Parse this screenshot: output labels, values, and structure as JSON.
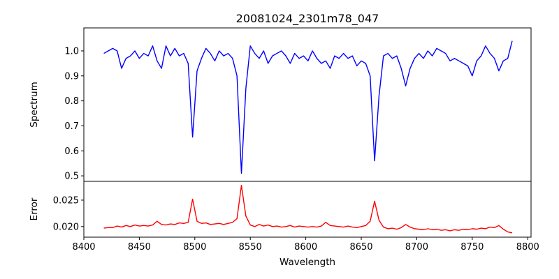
{
  "chart_data": [
    {
      "type": "line",
      "panel": "top",
      "title": "20081024_2301m78_047",
      "xlabel": "Wavelength",
      "ylabel": "Spectrum",
      "xlim": [
        8400,
        8803
      ],
      "ylim": [
        0.478,
        1.092
      ],
      "xticks": [
        "8400",
        "8450",
        "8500",
        "8550",
        "8600",
        "8650",
        "8700",
        "8750",
        "8800"
      ],
      "yticks": [
        "0.5",
        "0.6",
        "0.7",
        "0.8",
        "0.9",
        "1.0"
      ],
      "ytick_values": [
        0.5,
        0.6,
        0.7,
        0.8,
        0.9,
        1.0
      ],
      "color": "#0000ff",
      "x_start": 8418,
      "x_step": 4,
      "values": [
        0.99,
        1.0,
        1.01,
        1.0,
        0.93,
        0.97,
        0.98,
        1.0,
        0.97,
        0.99,
        0.98,
        1.02,
        0.96,
        0.93,
        1.02,
        0.98,
        1.01,
        0.98,
        0.99,
        0.95,
        0.655,
        0.92,
        0.97,
        1.01,
        0.99,
        0.96,
        1.0,
        0.98,
        0.99,
        0.97,
        0.9,
        0.51,
        0.85,
        1.02,
        0.99,
        0.97,
        1.0,
        0.95,
        0.98,
        0.99,
        1.0,
        0.98,
        0.95,
        0.99,
        0.97,
        0.98,
        0.96,
        1.0,
        0.97,
        0.95,
        0.96,
        0.93,
        0.98,
        0.97,
        0.99,
        0.97,
        0.98,
        0.94,
        0.96,
        0.95,
        0.9,
        0.56,
        0.82,
        0.98,
        0.99,
        0.97,
        0.98,
        0.93,
        0.86,
        0.93,
        0.97,
        0.99,
        0.97,
        1.0,
        0.98,
        1.01,
        1.0,
        0.99,
        0.96,
        0.97,
        0.96,
        0.95,
        0.94,
        0.9,
        0.96,
        0.98,
        1.02,
        0.99,
        0.97,
        0.92,
        0.96,
        0.97,
        1.04
      ]
    },
    {
      "type": "line",
      "panel": "bottom",
      "xlabel": "Wavelength",
      "ylabel": "Error",
      "xlim": [
        8400,
        8803
      ],
      "ylim": [
        0.018,
        0.02855
      ],
      "yticks": [
        "0.020",
        "0.025"
      ],
      "ytick_values": [
        0.02,
        0.025
      ],
      "color": "#ff0000",
      "x_start": 8418,
      "x_step": 4,
      "values": [
        0.0197,
        0.0198,
        0.0198,
        0.0201,
        0.0199,
        0.0202,
        0.02,
        0.0203,
        0.0201,
        0.0202,
        0.0201,
        0.0203,
        0.021,
        0.0204,
        0.0203,
        0.0205,
        0.0204,
        0.0207,
        0.0206,
        0.0208,
        0.0252,
        0.021,
        0.0206,
        0.0207,
        0.0204,
        0.0205,
        0.0206,
        0.0204,
        0.0206,
        0.0208,
        0.0215,
        0.0278,
        0.022,
        0.0203,
        0.02,
        0.0204,
        0.0201,
        0.0203,
        0.02,
        0.0201,
        0.0199,
        0.02,
        0.0202,
        0.0199,
        0.0201,
        0.02,
        0.0199,
        0.02,
        0.0199,
        0.0201,
        0.0208,
        0.0202,
        0.0201,
        0.02,
        0.0199,
        0.0201,
        0.0199,
        0.0198,
        0.02,
        0.0202,
        0.021,
        0.0248,
        0.0212,
        0.0199,
        0.0196,
        0.0197,
        0.0195,
        0.0198,
        0.0204,
        0.0199,
        0.0196,
        0.0195,
        0.0194,
        0.0196,
        0.0194,
        0.0195,
        0.0193,
        0.0194,
        0.0192,
        0.0194,
        0.0193,
        0.0195,
        0.0194,
        0.0196,
        0.0195,
        0.0197,
        0.0196,
        0.0199,
        0.0198,
        0.0202,
        0.0195,
        0.019,
        0.0188
      ]
    }
  ]
}
